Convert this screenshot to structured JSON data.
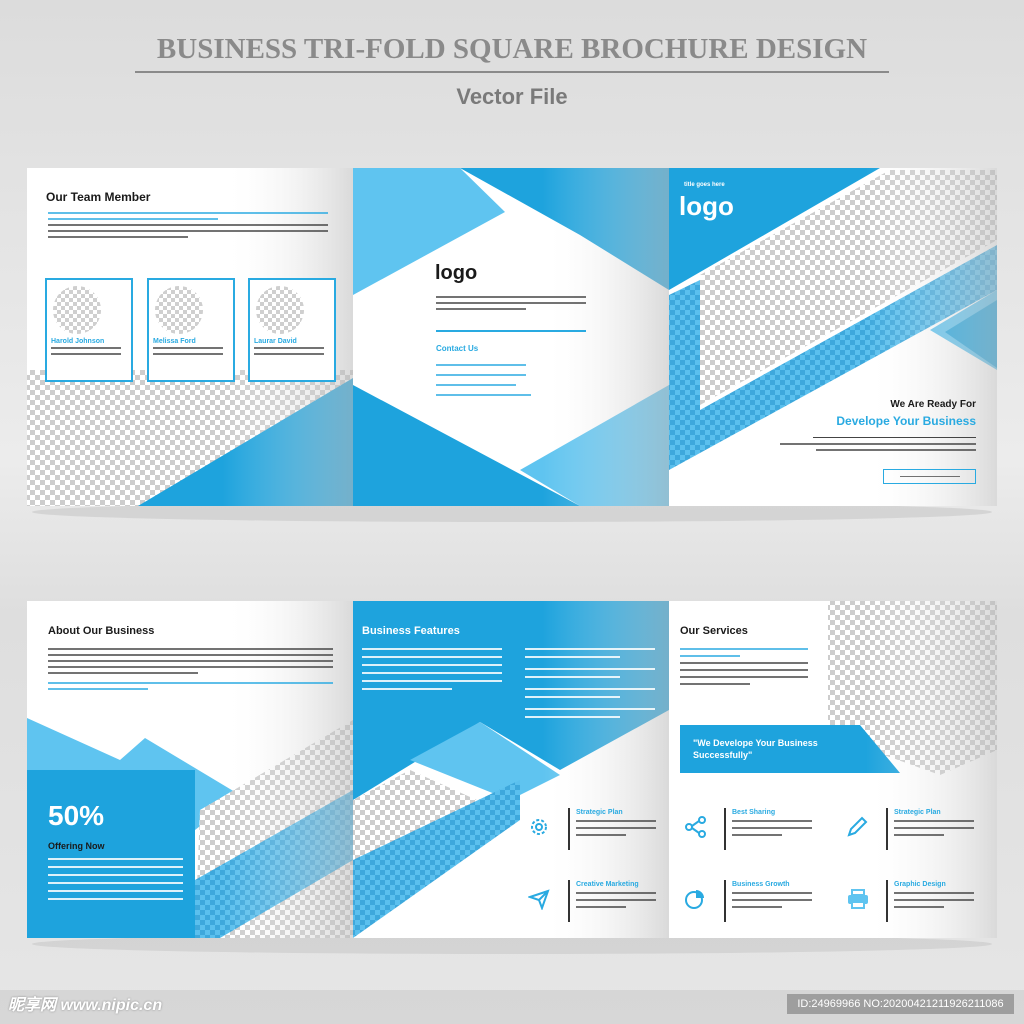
{
  "header": {
    "title": "BUSINESS TRI-FOLD SQUARE BROCHURE DESIGN",
    "subtitle": "Vector File"
  },
  "colors": {
    "primary_blue": "#1ea3dd",
    "light_blue": "#5fc4f0",
    "checker_gray": "#cfcfcf"
  },
  "outside": {
    "team": {
      "title": "Our Team Member",
      "members": [
        {
          "name": "Harold Johnson"
        },
        {
          "name": "Melissa Ford"
        },
        {
          "name": "Laurar David"
        }
      ]
    },
    "back": {
      "logo": "logo",
      "contact_title": "Contact Us"
    },
    "cover": {
      "logo": "logo",
      "logo_tagline": "title goes here",
      "headline": "We Are Ready For",
      "headline_accent": "Develope Your Business"
    }
  },
  "inside": {
    "about": {
      "title": "About Our Business",
      "offer_value": "50%",
      "offer_label": "Offering Now"
    },
    "features": {
      "title": "Business Features"
    },
    "services": {
      "title": "Our Services",
      "quote": "\"We Develope Your Business Successfully\"",
      "items": [
        {
          "title": "Strategic Plan",
          "icon": "gear-icon"
        },
        {
          "title": "Creative Marketing",
          "icon": "paper-plane-icon"
        },
        {
          "title": "Best Sharing",
          "icon": "share-icon"
        },
        {
          "title": "Business Growth",
          "icon": "pie-chart-icon"
        },
        {
          "title": "Strategic Plan",
          "icon": "pencil-icon"
        },
        {
          "title": "Graphic Design",
          "icon": "printer-icon"
        }
      ]
    }
  },
  "watermark": {
    "site": "昵享网 www.nipic.cn",
    "id": "ID:24969966 NO:20200421211926211086"
  }
}
